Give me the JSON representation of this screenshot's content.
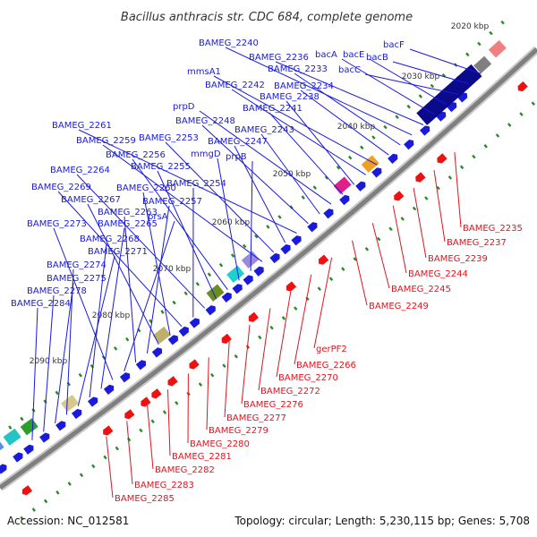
{
  "title": "Bacillus anthracis str. CDC 684, complete genome",
  "footer": {
    "accession": "Accession: NC_012581",
    "summary": "Topology: circular; Length: 5,230,115 bp; Genes: 5,708"
  },
  "colors": {
    "forward_label": "#1a1adb",
    "reverse_label": "#e0141e",
    "backbone": "#7f7f7f",
    "feature_blue": "#1a1adb",
    "feature_red": "#ee1111",
    "tick_green": "#2a8a2a"
  },
  "ticks": [
    "2020 kbp",
    "2030 kbp",
    "2040 kbp",
    "2050 kbp",
    "2060 kbp",
    "2070 kbp",
    "2080 kbp",
    "2090 kbp"
  ],
  "forward_genes": [
    "bacF",
    "bacB",
    "bacC",
    "bacE",
    "bacA",
    "BAMEG_2236",
    "BAMEG_2240",
    "BAMEG_2233",
    "BAMEG_2234",
    "mmsA1",
    "BAMEG_2242",
    "BAMEG_2238",
    "BAMEG_2241",
    "prpD",
    "BAMEG_2243",
    "BAMEG_2248",
    "BAMEG_2261",
    "BAMEG_2247",
    "BAMEG_2253",
    "BAMEG_2259",
    "prpB",
    "mmgD",
    "BAMEG_2256",
    "BAMEG_2255",
    "BAMEG_2264",
    "BAMEG_2254",
    "BAMEG_2269",
    "BAMEG_2260",
    "BAMEG_2267",
    "BAMEG_2257",
    "BAMEG_2263",
    "prsA",
    "BAMEG_2273",
    "BAMEG_2265",
    "BAMEG_2268",
    "BAMEG_2271",
    "BAMEG_2274",
    "BAMEG_2275",
    "BAMEG_2278",
    "BAMEG_2284"
  ],
  "reverse_genes": [
    "BAMEG_2235",
    "BAMEG_2237",
    "BAMEG_2239",
    "BAMEG_2244",
    "BAMEG_2245",
    "BAMEG_2249",
    "gerPF2",
    "BAMEG_2266",
    "BAMEG_2270",
    "BAMEG_2272",
    "BAMEG_2276",
    "BAMEG_2277",
    "BAMEG_2279",
    "BAMEG_2280",
    "BAMEG_2281",
    "BAMEG_2282",
    "BAMEG_2283",
    "BAMEG_2285"
  ]
}
